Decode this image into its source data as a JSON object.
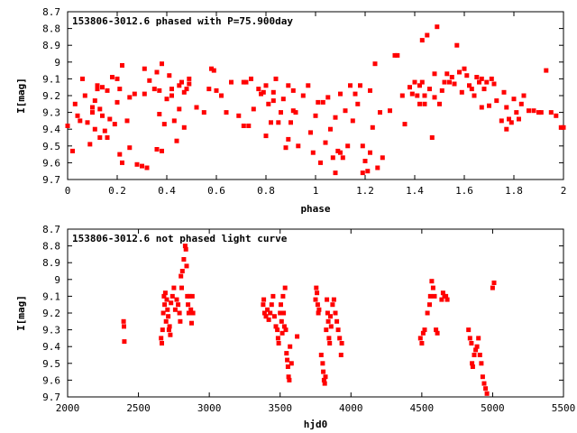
{
  "chart_data": [
    {
      "type": "scatter",
      "title": "153806-3012.6 phased with P=75.900day",
      "xlabel": "phase",
      "ylabel": "I[mag]",
      "xlim": [
        0,
        2
      ],
      "ylim": [
        8.7,
        9.7
      ],
      "y_inverted": true,
      "grid": false,
      "marker_color": "#ff0000",
      "xticks": [
        "0",
        "0.2",
        "0.4",
        "0.6",
        "0.8",
        "1",
        "1.2",
        "1.4",
        "1.6",
        "1.8",
        "2"
      ],
      "yticks": [
        "8.7",
        "8.8",
        "8.9",
        "9",
        "9.1",
        "9.2",
        "9.3",
        "9.4",
        "9.5",
        "9.6",
        "9.7"
      ],
      "points": [
        [
          0.0,
          9.38
        ],
        [
          0.02,
          9.53
        ],
        [
          0.03,
          9.25
        ],
        [
          0.04,
          9.32
        ],
        [
          0.05,
          9.35
        ],
        [
          0.06,
          9.1
        ],
        [
          0.07,
          9.2
        ],
        [
          0.08,
          9.36
        ],
        [
          0.09,
          9.49
        ],
        [
          0.1,
          9.3
        ],
        [
          0.1,
          9.27
        ],
        [
          0.11,
          9.23
        ],
        [
          0.11,
          9.4
        ],
        [
          0.12,
          9.14
        ],
        [
          0.12,
          9.16
        ],
        [
          0.13,
          9.45
        ],
        [
          0.13,
          9.28
        ],
        [
          0.14,
          9.15
        ],
        [
          0.14,
          9.32
        ],
        [
          0.15,
          9.41
        ],
        [
          0.16,
          9.17
        ],
        [
          0.16,
          9.45
        ],
        [
          0.17,
          9.34
        ],
        [
          0.18,
          9.09
        ],
        [
          0.19,
          9.37
        ],
        [
          0.2,
          9.1
        ],
        [
          0.2,
          9.24
        ],
        [
          0.21,
          9.55
        ],
        [
          0.21,
          9.16
        ],
        [
          0.22,
          9.6
        ],
        [
          0.22,
          9.02
        ],
        [
          0.24,
          9.35
        ],
        [
          0.25,
          9.21
        ],
        [
          0.25,
          9.51
        ],
        [
          0.27,
          9.19
        ],
        [
          0.28,
          9.61
        ],
        [
          0.3,
          9.62
        ],
        [
          0.31,
          9.04
        ],
        [
          0.31,
          9.19
        ],
        [
          0.32,
          9.63
        ],
        [
          0.33,
          9.11
        ],
        [
          0.35,
          9.16
        ],
        [
          0.36,
          9.06
        ],
        [
          0.36,
          9.52
        ],
        [
          0.37,
          9.31
        ],
        [
          0.37,
          9.17
        ],
        [
          0.38,
          9.01
        ],
        [
          0.38,
          9.53
        ],
        [
          0.39,
          9.37
        ],
        [
          0.4,
          9.22
        ],
        [
          0.41,
          9.08
        ],
        [
          0.42,
          9.2
        ],
        [
          0.42,
          9.16
        ],
        [
          0.43,
          9.35
        ],
        [
          0.44,
          9.47
        ],
        [
          0.45,
          9.14
        ],
        [
          0.45,
          9.28
        ],
        [
          0.46,
          9.12
        ],
        [
          0.47,
          9.18
        ],
        [
          0.47,
          9.39
        ],
        [
          0.48,
          9.16
        ],
        [
          0.49,
          9.1
        ],
        [
          0.49,
          9.13
        ],
        [
          0.52,
          9.27
        ],
        [
          0.55,
          9.3
        ],
        [
          0.57,
          9.16
        ],
        [
          0.58,
          9.04
        ],
        [
          0.59,
          9.05
        ],
        [
          0.6,
          9.17
        ],
        [
          0.62,
          9.2
        ],
        [
          0.64,
          9.3
        ],
        [
          0.66,
          9.12
        ],
        [
          0.69,
          9.32
        ],
        [
          0.71,
          9.12
        ],
        [
          0.71,
          9.38
        ],
        [
          0.72,
          9.12
        ],
        [
          0.73,
          9.38
        ],
        [
          0.74,
          9.1
        ],
        [
          0.75,
          9.28
        ],
        [
          0.77,
          9.16
        ],
        [
          0.78,
          9.19
        ],
        [
          0.79,
          9.18
        ],
        [
          0.8,
          9.44
        ],
        [
          0.8,
          9.14
        ],
        [
          0.81,
          9.25
        ],
        [
          0.82,
          9.36
        ],
        [
          0.83,
          9.18
        ],
        [
          0.83,
          9.23
        ],
        [
          0.84,
          9.1
        ],
        [
          0.85,
          9.36
        ],
        [
          0.86,
          9.3
        ],
        [
          0.87,
          9.22
        ],
        [
          0.88,
          9.51
        ],
        [
          0.89,
          9.46
        ],
        [
          0.89,
          9.14
        ],
        [
          0.9,
          9.36
        ],
        [
          0.91,
          9.17
        ],
        [
          0.91,
          9.29
        ],
        [
          0.92,
          9.3
        ],
        [
          0.93,
          9.5
        ],
        [
          0.95,
          9.2
        ],
        [
          0.97,
          9.14
        ],
        [
          0.98,
          9.42
        ],
        [
          0.99,
          9.54
        ],
        [
          1.0,
          9.32
        ],
        [
          1.01,
          9.24
        ],
        [
          1.02,
          9.6
        ],
        [
          1.03,
          9.24
        ],
        [
          1.04,
          9.48
        ],
        [
          1.05,
          9.21
        ],
        [
          1.06,
          9.4
        ],
        [
          1.07,
          9.57
        ],
        [
          1.08,
          9.33
        ],
        [
          1.08,
          9.66
        ],
        [
          1.09,
          9.53
        ],
        [
          1.1,
          9.54
        ],
        [
          1.1,
          9.19
        ],
        [
          1.11,
          9.57
        ],
        [
          1.12,
          9.29
        ],
        [
          1.13,
          9.5
        ],
        [
          1.14,
          9.14
        ],
        [
          1.15,
          9.35
        ],
        [
          1.16,
          9.19
        ],
        [
          1.17,
          9.25
        ],
        [
          1.18,
          9.14
        ],
        [
          1.19,
          9.5
        ],
        [
          1.19,
          9.66
        ],
        [
          1.2,
          9.59
        ],
        [
          1.21,
          9.65
        ],
        [
          1.22,
          9.17
        ],
        [
          1.22,
          9.54
        ],
        [
          1.23,
          9.39
        ],
        [
          1.24,
          9.01
        ],
        [
          1.25,
          9.63
        ],
        [
          1.26,
          9.3
        ],
        [
          1.27,
          9.57
        ],
        [
          1.3,
          9.29
        ],
        [
          1.32,
          8.96
        ],
        [
          1.33,
          8.96
        ],
        [
          1.35,
          9.2
        ],
        [
          1.36,
          9.37
        ],
        [
          1.38,
          9.15
        ],
        [
          1.39,
          9.19
        ],
        [
          1.4,
          9.12
        ],
        [
          1.41,
          9.2
        ],
        [
          1.42,
          9.14
        ],
        [
          1.42,
          9.25
        ],
        [
          1.43,
          8.87
        ],
        [
          1.43,
          9.12
        ],
        [
          1.44,
          9.2
        ],
        [
          1.44,
          9.25
        ],
        [
          1.45,
          8.84
        ],
        [
          1.46,
          9.16
        ],
        [
          1.47,
          9.45
        ],
        [
          1.48,
          9.07
        ],
        [
          1.48,
          9.21
        ],
        [
          1.49,
          8.79
        ],
        [
          1.5,
          9.25
        ],
        [
          1.51,
          9.17
        ],
        [
          1.52,
          9.12
        ],
        [
          1.53,
          9.07
        ],
        [
          1.54,
          9.12
        ],
        [
          1.55,
          9.09
        ],
        [
          1.56,
          9.13
        ],
        [
          1.57,
          8.9
        ],
        [
          1.58,
          9.06
        ],
        [
          1.59,
          9.18
        ],
        [
          1.6,
          9.04
        ],
        [
          1.61,
          9.08
        ],
        [
          1.62,
          9.14
        ],
        [
          1.63,
          9.16
        ],
        [
          1.64,
          9.2
        ],
        [
          1.65,
          9.09
        ],
        [
          1.66,
          9.12
        ],
        [
          1.67,
          9.1
        ],
        [
          1.67,
          9.27
        ],
        [
          1.68,
          9.16
        ],
        [
          1.69,
          9.12
        ],
        [
          1.7,
          9.26
        ],
        [
          1.71,
          9.1
        ],
        [
          1.72,
          9.13
        ],
        [
          1.73,
          9.23
        ],
        [
          1.75,
          9.35
        ],
        [
          1.76,
          9.18
        ],
        [
          1.77,
          9.27
        ],
        [
          1.77,
          9.4
        ],
        [
          1.78,
          9.34
        ],
        [
          1.79,
          9.36
        ],
        [
          1.8,
          9.22
        ],
        [
          1.81,
          9.3
        ],
        [
          1.82,
          9.34
        ],
        [
          1.83,
          9.25
        ],
        [
          1.84,
          9.2
        ],
        [
          1.86,
          9.29
        ],
        [
          1.88,
          9.29
        ],
        [
          1.9,
          9.3
        ],
        [
          1.91,
          9.3
        ],
        [
          1.93,
          9.05
        ],
        [
          1.95,
          9.3
        ],
        [
          1.97,
          9.32
        ],
        [
          1.99,
          9.39
        ],
        [
          2.0,
          9.39
        ]
      ]
    },
    {
      "type": "scatter",
      "title": "153806-3012.6 not phased light curve",
      "xlabel": "hjd0",
      "ylabel": "I[mag]",
      "xlim": [
        2000,
        5500
      ],
      "ylim": [
        8.7,
        9.7
      ],
      "y_inverted": true,
      "grid": false,
      "marker_color": "#ff0000",
      "xticks": [
        "2000",
        "2500",
        "3000",
        "3500",
        "4000",
        "4500",
        "5000",
        "5500"
      ],
      "yticks": [
        "8.7",
        "8.8",
        "8.9",
        "9",
        "9.1",
        "9.2",
        "9.3",
        "9.4",
        "9.5",
        "9.6",
        "9.7"
      ],
      "points": [
        [
          2395,
          9.25
        ],
        [
          2398,
          9.28
        ],
        [
          2400,
          9.37
        ],
        [
          2660,
          9.35
        ],
        [
          2665,
          9.38
        ],
        [
          2670,
          9.3
        ],
        [
          2675,
          9.2
        ],
        [
          2680,
          9.1
        ],
        [
          2685,
          9.15
        ],
        [
          2690,
          9.08
        ],
        [
          2695,
          9.25
        ],
        [
          2700,
          9.12
        ],
        [
          2705,
          9.18
        ],
        [
          2710,
          9.22
        ],
        [
          2715,
          9.3
        ],
        [
          2720,
          9.28
        ],
        [
          2725,
          9.33
        ],
        [
          2730,
          9.14
        ],
        [
          2740,
          9.1
        ],
        [
          2750,
          9.05
        ],
        [
          2760,
          9.18
        ],
        [
          2770,
          9.12
        ],
        [
          2780,
          9.15
        ],
        [
          2790,
          9.2
        ],
        [
          2795,
          9.25
        ],
        [
          2800,
          8.98
        ],
        [
          2805,
          9.05
        ],
        [
          2810,
          8.95
        ],
        [
          2820,
          8.88
        ],
        [
          2830,
          8.8
        ],
        [
          2835,
          8.82
        ],
        [
          2840,
          8.92
        ],
        [
          2845,
          9.1
        ],
        [
          2850,
          9.15
        ],
        [
          2855,
          9.2
        ],
        [
          2860,
          9.1
        ],
        [
          2870,
          9.18
        ],
        [
          2875,
          9.26
        ],
        [
          2880,
          9.1
        ],
        [
          2885,
          9.2
        ],
        [
          3380,
          9.15
        ],
        [
          3385,
          9.12
        ],
        [
          3390,
          9.2
        ],
        [
          3400,
          9.22
        ],
        [
          3410,
          9.18
        ],
        [
          3420,
          9.24
        ],
        [
          3430,
          9.2
        ],
        [
          3440,
          9.15
        ],
        [
          3450,
          9.1
        ],
        [
          3460,
          9.22
        ],
        [
          3470,
          9.28
        ],
        [
          3480,
          9.3
        ],
        [
          3485,
          9.35
        ],
        [
          3490,
          9.38
        ],
        [
          3500,
          9.2
        ],
        [
          3505,
          9.15
        ],
        [
          3510,
          9.25
        ],
        [
          3515,
          9.32
        ],
        [
          3520,
          9.1
        ],
        [
          3525,
          9.2
        ],
        [
          3530,
          9.28
        ],
        [
          3535,
          9.05
        ],
        [
          3540,
          9.3
        ],
        [
          3545,
          9.44
        ],
        [
          3550,
          9.48
        ],
        [
          3555,
          9.52
        ],
        [
          3560,
          9.58
        ],
        [
          3565,
          9.6
        ],
        [
          3570,
          9.4
        ],
        [
          3580,
          9.5
        ],
        [
          3620,
          9.34
        ],
        [
          3750,
          9.12
        ],
        [
          3755,
          9.05
        ],
        [
          3760,
          9.08
        ],
        [
          3765,
          9.15
        ],
        [
          3770,
          9.2
        ],
        [
          3775,
          9.18
        ],
        [
          3790,
          9.45
        ],
        [
          3800,
          9.5
        ],
        [
          3805,
          9.55
        ],
        [
          3810,
          9.6
        ],
        [
          3815,
          9.62
        ],
        [
          3820,
          9.58
        ],
        [
          3825,
          9.3
        ],
        [
          3830,
          9.12
        ],
        [
          3835,
          9.2
        ],
        [
          3840,
          9.25
        ],
        [
          3845,
          9.35
        ],
        [
          3850,
          9.38
        ],
        [
          3855,
          9.22
        ],
        [
          3860,
          9.28
        ],
        [
          3870,
          9.15
        ],
        [
          3880,
          9.12
        ],
        [
          3890,
          9.2
        ],
        [
          3900,
          9.25
        ],
        [
          3910,
          9.3
        ],
        [
          3920,
          9.35
        ],
        [
          3930,
          9.45
        ],
        [
          3935,
          9.38
        ],
        [
          4490,
          9.35
        ],
        [
          4500,
          9.38
        ],
        [
          4510,
          9.32
        ],
        [
          4520,
          9.3
        ],
        [
          4540,
          9.2
        ],
        [
          4555,
          9.15
        ],
        [
          4560,
          9.1
        ],
        [
          4570,
          9.01
        ],
        [
          4580,
          9.05
        ],
        [
          4590,
          9.1
        ],
        [
          4600,
          9.3
        ],
        [
          4610,
          9.32
        ],
        [
          4640,
          9.12
        ],
        [
          4650,
          9.08
        ],
        [
          4660,
          9.1
        ],
        [
          4670,
          9.1
        ],
        [
          4680,
          9.12
        ],
        [
          4830,
          9.3
        ],
        [
          4840,
          9.35
        ],
        [
          4850,
          9.38
        ],
        [
          4855,
          9.5
        ],
        [
          4860,
          9.52
        ],
        [
          4870,
          9.45
        ],
        [
          4880,
          9.42
        ],
        [
          4890,
          9.4
        ],
        [
          4900,
          9.35
        ],
        [
          4910,
          9.45
        ],
        [
          4920,
          9.5
        ],
        [
          4930,
          9.58
        ],
        [
          4940,
          9.62
        ],
        [
          4950,
          9.65
        ],
        [
          4960,
          9.68
        ],
        [
          5000,
          9.05
        ],
        [
          5010,
          9.02
        ]
      ]
    }
  ]
}
